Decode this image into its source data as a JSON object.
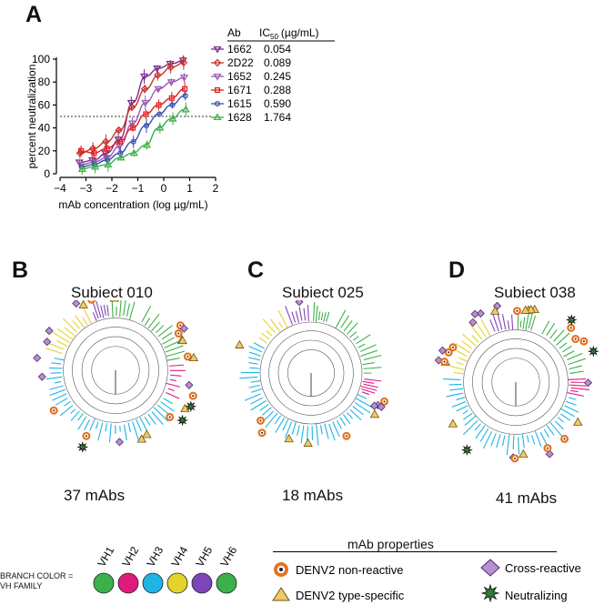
{
  "panel_a": {
    "letter": "A",
    "ab_header": "Ab",
    "ic_header_main": "IC",
    "ic_header_sub": "50",
    "ic_header_unit": "(µg/mL)",
    "rows": [
      {
        "ab": "1662",
        "ic50": "0.054",
        "color": "#7b2a8c",
        "marker": "triangle-down"
      },
      {
        "ab": "2D22",
        "ic50": "0.089",
        "color": "#c8342b",
        "marker": "diamond"
      },
      {
        "ab": "1652",
        "ic50": "0.245",
        "color": "#9b59b6",
        "marker": "triangle-down"
      },
      {
        "ab": "1671",
        "ic50": "0.288",
        "color": "#e02020",
        "marker": "square"
      },
      {
        "ab": "1615",
        "ic50": "0.590",
        "color": "#3a4fb0",
        "marker": "circle"
      },
      {
        "ab": "1628",
        "ic50": "1.764",
        "color": "#3cb04a",
        "marker": "triangle-up"
      }
    ]
  },
  "chart_data": {
    "type": "line",
    "xlabel": "mAb concentration (log µg/mL)",
    "ylabel": "percent neutralization",
    "xlim": [
      -4,
      2
    ],
    "ylim": [
      0,
      100
    ],
    "xticks": [
      -4,
      -3,
      -2,
      -1,
      0,
      1,
      2
    ],
    "yticks": [
      0,
      20,
      40,
      60,
      80,
      100
    ],
    "reference_line_y": 50,
    "x": [
      -3.2,
      -2.7,
      -2.2,
      -1.7,
      -1.2,
      -0.7,
      -0.2,
      0.3,
      0.8
    ],
    "series": [
      {
        "name": "1662",
        "color": "#7b2a8c",
        "marker": "triangle-down",
        "values": [
          10,
          12,
          18,
          30,
          62,
          85,
          92,
          96,
          99
        ]
      },
      {
        "name": "2D22",
        "color": "#c8342b",
        "marker": "diamond",
        "values": [
          18,
          22,
          28,
          38,
          58,
          74,
          86,
          93,
          97
        ]
      },
      {
        "name": "1652",
        "color": "#9b59b6",
        "marker": "triangle-down",
        "values": [
          8,
          10,
          14,
          24,
          44,
          62,
          74,
          80,
          84
        ]
      },
      {
        "name": "1671",
        "color": "#e02020",
        "marker": "square",
        "values": [
          20,
          18,
          22,
          28,
          40,
          52,
          60,
          66,
          74
        ]
      },
      {
        "name": "1615",
        "color": "#3a4fb0",
        "marker": "circle",
        "values": [
          6,
          8,
          12,
          18,
          28,
          42,
          52,
          60,
          68
        ]
      },
      {
        "name": "1628",
        "color": "#3cb04a",
        "marker": "triangle-up",
        "values": [
          4,
          6,
          8,
          14,
          18,
          25,
          40,
          48,
          56
        ]
      }
    ]
  },
  "panels": [
    {
      "letter": "B",
      "title": "Subiect 010",
      "count": "37 mAbs"
    },
    {
      "letter": "C",
      "title": "Subiect 025",
      "count": "18 mAbs"
    },
    {
      "letter": "D",
      "title": "Subiect 038",
      "count": "41 mAbs"
    }
  ],
  "legend_vh": {
    "title_line1": "BRANCH COLOR =",
    "title_line2": "VH FAMILY",
    "families": [
      {
        "label": "VH1",
        "color": "#3cb04a"
      },
      {
        "label": "VH2",
        "color": "#e0197d"
      },
      {
        "label": "VH3",
        "color": "#1eb4e6"
      },
      {
        "label": "VH4",
        "color": "#e3d32a"
      },
      {
        "label": "VH5",
        "color": "#7e45b8"
      },
      {
        "label": "VH6",
        "color": "#3cb04a"
      }
    ]
  },
  "legend_props": {
    "title": "mAb properties",
    "items": [
      {
        "label": "DENV2 non-reactive",
        "icon": "ring-icon"
      },
      {
        "label": "DENV2 type-specific",
        "icon": "triangle-icon"
      },
      {
        "label": "Cross-reactive",
        "icon": "diamond-icon"
      },
      {
        "label": "Neutralizing",
        "icon": "star-icon"
      }
    ]
  }
}
